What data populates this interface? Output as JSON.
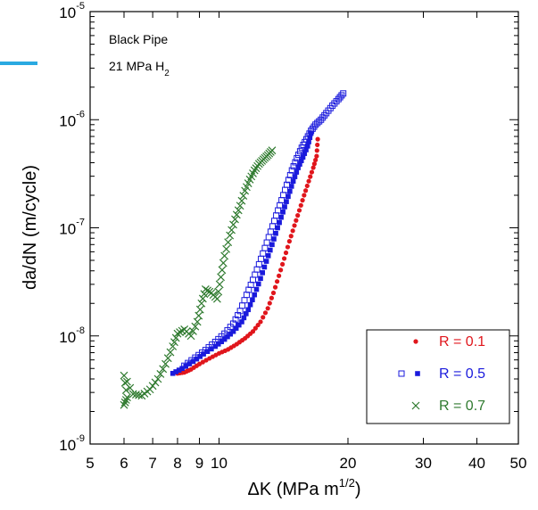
{
  "chart_data": {
    "type": "scatter",
    "title": "",
    "xlabel": "ΔK (MPa m",
    "xlabel_sup": "1/2",
    "xlabel_close": ")",
    "ylabel": "da/dN (m/cycle)",
    "x_scale": "log",
    "y_scale": "log",
    "xlim": [
      5,
      50
    ],
    "ylim": [
      1e-09,
      1e-05
    ],
    "grid": false,
    "legend_position": "bottom-right",
    "x_ticks": [
      {
        "value": 5,
        "label": "5"
      },
      {
        "value": 6,
        "label": "6"
      },
      {
        "value": 7,
        "label": "7"
      },
      {
        "value": 8,
        "label": "8"
      },
      {
        "value": 9,
        "label": "9"
      },
      {
        "value": 10,
        "label": "10"
      },
      {
        "value": 20,
        "label": "20"
      },
      {
        "value": 30,
        "label": "30"
      },
      {
        "value": 40,
        "label": "40"
      },
      {
        "value": 50,
        "label": "50"
      }
    ],
    "y_ticks": [
      {
        "value": 1e-09,
        "base": "10",
        "exp": "-9"
      },
      {
        "value": 1e-08,
        "base": "10",
        "exp": "-8"
      },
      {
        "value": 1e-07,
        "base": "10",
        "exp": "-7"
      },
      {
        "value": 1e-06,
        "base": "10",
        "exp": "-6"
      },
      {
        "value": 1e-05,
        "base": "10",
        "exp": "-5"
      }
    ],
    "annotation": {
      "line1": "Black Pipe",
      "line2_main": "21 MPa H",
      "line2_sub": "2"
    },
    "series": [
      {
        "name": "R = 0.1",
        "color": "#e0161c",
        "marker": "dot",
        "points": [
          [
            8.0,
            4.5e-09
          ],
          [
            8.3,
            4.6e-09
          ],
          [
            8.6,
            4.9e-09
          ],
          [
            9.0,
            5.5e-09
          ],
          [
            9.5,
            6.2e-09
          ],
          [
            10.0,
            6.9e-09
          ],
          [
            10.5,
            7.5e-09
          ],
          [
            11.0,
            8.4e-09
          ],
          [
            11.5,
            9.5e-09
          ],
          [
            12.0,
            1.1e-08
          ],
          [
            12.5,
            1.35e-08
          ],
          [
            13.0,
            1.8e-08
          ],
          [
            13.4,
            2.5e-08
          ],
          [
            13.8,
            3.6e-08
          ],
          [
            14.2,
            5.2e-08
          ],
          [
            14.6,
            7.5e-08
          ],
          [
            15.0,
            1.05e-07
          ],
          [
            15.4,
            1.45e-07
          ],
          [
            15.8,
            2e-07
          ],
          [
            16.2,
            2.7e-07
          ],
          [
            16.6,
            3.6e-07
          ],
          [
            16.9,
            4.6e-07
          ],
          [
            17.0,
            6.6e-07
          ]
        ]
      },
      {
        "name": "R = 0.5",
        "color": "#1a1adc",
        "marker": "square-filled",
        "points": [
          [
            7.8,
            4.5e-09
          ],
          [
            8.2,
            5e-09
          ],
          [
            8.7,
            5.8e-09
          ],
          [
            9.2,
            6.8e-09
          ],
          [
            9.8,
            8e-09
          ],
          [
            10.3,
            9.3e-09
          ],
          [
            10.8,
            1.1e-08
          ],
          [
            11.3,
            1.35e-08
          ],
          [
            11.7,
            1.75e-08
          ],
          [
            12.1,
            2.4e-08
          ],
          [
            12.5,
            3.4e-08
          ],
          [
            12.9,
            4.9e-08
          ],
          [
            13.3,
            7e-08
          ],
          [
            13.7,
            1e-07
          ],
          [
            14.1,
            1.4e-07
          ],
          [
            14.5,
            1.95e-07
          ],
          [
            14.9,
            2.7e-07
          ],
          [
            15.3,
            3.6e-07
          ],
          [
            15.7,
            4.5e-07
          ],
          [
            16.1,
            5.7e-07
          ],
          [
            16.4,
            7.5e-07
          ]
        ]
      },
      {
        "name": "",
        "color": "#1a1adc",
        "marker": "square-open",
        "points": [
          [
            8.3,
            5.3e-09
          ],
          [
            8.8,
            6.3e-09
          ],
          [
            9.3,
            7.4e-09
          ],
          [
            9.8,
            8.8e-09
          ],
          [
            10.3,
            1.05e-08
          ],
          [
            10.8,
            1.3e-08
          ],
          [
            11.2,
            1.7e-08
          ],
          [
            11.6,
            2.4e-08
          ],
          [
            12.0,
            3.3e-08
          ],
          [
            12.4,
            4.6e-08
          ],
          [
            12.8,
            6.5e-08
          ],
          [
            13.2,
            9.2e-08
          ],
          [
            13.6,
            1.3e-07
          ],
          [
            14.0,
            1.8e-07
          ],
          [
            14.4,
            2.5e-07
          ],
          [
            14.8,
            3.4e-07
          ],
          [
            15.2,
            4.4e-07
          ],
          [
            15.6,
            5.5e-07
          ],
          [
            16.0,
            6.6e-07
          ],
          [
            16.4,
            7.9e-07
          ],
          [
            16.8,
            9e-07
          ],
          [
            17.3,
            1e-06
          ],
          [
            17.8,
            1.15e-06
          ],
          [
            18.4,
            1.35e-06
          ],
          [
            19.0,
            1.55e-06
          ],
          [
            19.5,
            1.75e-06
          ]
        ]
      },
      {
        "name": "R = 0.7",
        "color": "#2f7a2f",
        "marker": "cross",
        "points": [
          [
            6.0,
            2.3e-09
          ],
          [
            6.1,
            2.7e-09
          ],
          [
            6.0,
            4.3e-09
          ],
          [
            6.3,
            2.9e-09
          ],
          [
            6.6,
            2.8e-09
          ],
          [
            6.9,
            3.2e-09
          ],
          [
            7.2,
            4e-09
          ],
          [
            7.5,
            5.5e-09
          ],
          [
            7.8,
            8e-09
          ],
          [
            8.0,
            1.05e-08
          ],
          [
            8.3,
            1.15e-08
          ],
          [
            8.6,
            1e-08
          ],
          [
            8.9,
            1.35e-08
          ],
          [
            9.1,
            2e-08
          ],
          [
            9.3,
            2.7e-08
          ],
          [
            9.6,
            2.5e-08
          ],
          [
            9.9,
            2.2e-08
          ],
          [
            10.1,
            3.5e-08
          ],
          [
            10.3,
            5.5e-08
          ],
          [
            10.6,
            8.5e-08
          ],
          [
            10.9,
            1.2e-07
          ],
          [
            11.2,
            1.6e-07
          ],
          [
            11.5,
            2.2e-07
          ],
          [
            11.8,
            2.8e-07
          ],
          [
            12.1,
            3.4e-07
          ],
          [
            12.4,
            3.9e-07
          ],
          [
            12.7,
            4.3e-07
          ],
          [
            13.0,
            4.7e-07
          ],
          [
            13.3,
            5.2e-07
          ]
        ]
      }
    ],
    "legend": [
      {
        "label": "R = 0.1",
        "color": "#e0161c",
        "markers": [
          "dot"
        ]
      },
      {
        "label": "R = 0.5",
        "color": "#1a1adc",
        "markers": [
          "square-open",
          "square-filled"
        ]
      },
      {
        "label": "R = 0.7",
        "color": "#2f7a2f",
        "markers": [
          "cross"
        ]
      }
    ]
  }
}
